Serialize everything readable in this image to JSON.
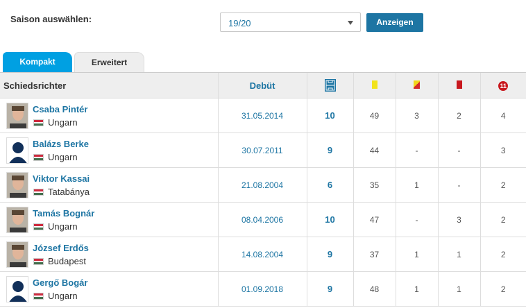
{
  "season": {
    "label": "Saison auswählen:",
    "selected": "19/20",
    "button": "Anzeigen"
  },
  "tabs": [
    {
      "label": "Kompakt",
      "active": true
    },
    {
      "label": "Erweitert",
      "active": false
    }
  ],
  "table": {
    "headers": {
      "referee": "Schiedsrichter",
      "debut": "Debüt",
      "games_icon": "pitch-icon",
      "yellow_icon": "yellow-card-icon",
      "yellow_red_icon": "yellow-red-card-icon",
      "red_icon": "red-card-icon",
      "penalty_icon": "penalty-icon",
      "penalty_text": "11"
    },
    "rows": [
      {
        "name": "Csaba Pintér",
        "location": "Ungarn",
        "debut": "31.05.2014",
        "games": "10",
        "yellow": "49",
        "yellow_red": "3",
        "red": "2",
        "penalties": "4",
        "avatar": "photo"
      },
      {
        "name": "Balázs Berke",
        "location": "Ungarn",
        "debut": "30.07.2011",
        "games": "9",
        "yellow": "44",
        "yellow_red": "-",
        "red": "-",
        "penalties": "3",
        "avatar": "silhouette"
      },
      {
        "name": "Viktor Kassai",
        "location": "Tatabánya",
        "debut": "21.08.2004",
        "games": "6",
        "yellow": "35",
        "yellow_red": "1",
        "red": "-",
        "penalties": "2",
        "avatar": "photo"
      },
      {
        "name": "Tamás Bognár",
        "location": "Ungarn",
        "debut": "08.04.2006",
        "games": "10",
        "yellow": "47",
        "yellow_red": "-",
        "red": "3",
        "penalties": "2",
        "avatar": "photo"
      },
      {
        "name": "József Erdős",
        "location": "Budapest",
        "debut": "14.08.2004",
        "games": "9",
        "yellow": "37",
        "yellow_red": "1",
        "red": "1",
        "penalties": "2",
        "avatar": "photo"
      },
      {
        "name": "Gergő Bogár",
        "location": "Ungarn",
        "debut": "01.09.2018",
        "games": "9",
        "yellow": "48",
        "yellow_red": "1",
        "red": "1",
        "penalties": "2",
        "avatar": "silhouette"
      }
    ]
  },
  "colors": {
    "accent": "#1d75a3",
    "tab_active": "#00a0e2",
    "flag": [
      "#cd2a3e",
      "#ffffff",
      "#436f4d"
    ]
  }
}
